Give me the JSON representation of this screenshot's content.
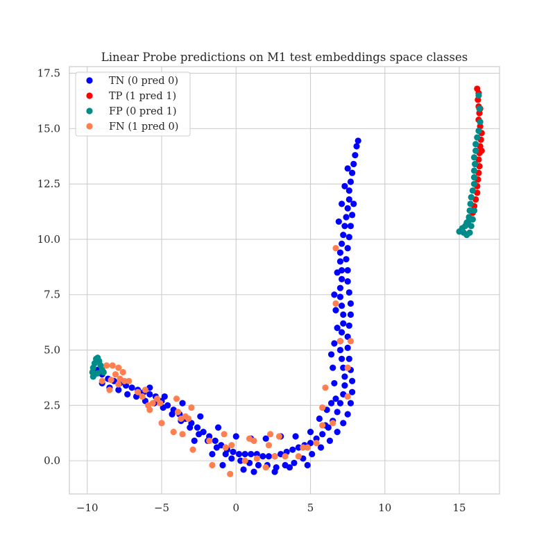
{
  "chart_data": {
    "type": "scatter",
    "title": "Linear Probe predictions on M1 test embeddings space classes",
    "xlabel": "",
    "ylabel": "",
    "xlim": [
      -11.2,
      17.7
    ],
    "ylim": [
      -1.5,
      17.8
    ],
    "xticks": [
      -10,
      -5,
      0,
      5,
      10,
      15
    ],
    "xtick_labels": [
      "−10",
      "−5",
      "0",
      "5",
      "10",
      "15"
    ],
    "yticks": [
      0.0,
      2.5,
      5.0,
      7.5,
      10.0,
      12.5,
      15.0,
      17.5
    ],
    "ytick_labels": [
      "0.0",
      "2.5",
      "5.0",
      "7.5",
      "10.0",
      "12.5",
      "15.0",
      "17.5"
    ],
    "grid": true,
    "legend_position": "upper-left",
    "series": [
      {
        "name": "TN (0 pred 0)",
        "color": "#0000ff",
        "points": [
          [
            -9.3,
            4.1
          ],
          [
            -9.0,
            3.9
          ],
          [
            -8.6,
            3.7
          ],
          [
            -8.2,
            3.6
          ],
          [
            -7.8,
            3.5
          ],
          [
            -7.4,
            3.4
          ],
          [
            -7.0,
            3.3
          ],
          [
            -6.6,
            3.2
          ],
          [
            -6.2,
            3.1
          ],
          [
            -5.8,
            3.0
          ],
          [
            -5.4,
            2.9
          ],
          [
            -5.0,
            2.7
          ],
          [
            -4.6,
            2.5
          ],
          [
            -4.2,
            2.3
          ],
          [
            -3.8,
            2.1
          ],
          [
            -3.4,
            1.9
          ],
          [
            -3.0,
            1.7
          ],
          [
            -2.6,
            1.5
          ],
          [
            -2.2,
            1.3
          ],
          [
            -1.8,
            1.1
          ],
          [
            -1.4,
            0.9
          ],
          [
            -1.0,
            0.7
          ],
          [
            -0.6,
            0.5
          ],
          [
            -0.2,
            0.4
          ],
          [
            0.2,
            0.3
          ],
          [
            0.6,
            0.3
          ],
          [
            1.0,
            0.3
          ],
          [
            1.4,
            0.3
          ],
          [
            1.8,
            0.2
          ],
          [
            2.2,
            0.2
          ],
          [
            2.6,
            0.2
          ],
          [
            3.0,
            0.3
          ],
          [
            3.4,
            0.4
          ],
          [
            3.8,
            0.5
          ],
          [
            4.2,
            0.6
          ],
          [
            4.6,
            0.7
          ],
          [
            5.0,
            0.8
          ],
          [
            5.4,
            1.0
          ],
          [
            5.8,
            1.2
          ],
          [
            6.2,
            1.5
          ],
          [
            6.5,
            1.8
          ],
          [
            6.8,
            2.2
          ],
          [
            7.0,
            2.6
          ],
          [
            7.2,
            3.0
          ],
          [
            7.3,
            3.4
          ],
          [
            7.3,
            3.8
          ],
          [
            7.2,
            4.2
          ],
          [
            7.1,
            4.6
          ],
          [
            7.0,
            5.0
          ],
          [
            7.0,
            5.4
          ],
          [
            7.1,
            5.8
          ],
          [
            7.2,
            6.2
          ],
          [
            7.2,
            6.6
          ],
          [
            7.1,
            7.0
          ],
          [
            7.0,
            7.4
          ],
          [
            7.0,
            7.8
          ],
          [
            7.1,
            8.2
          ],
          [
            7.1,
            8.6
          ],
          [
            7.0,
            9.0
          ],
          [
            7.0,
            9.4
          ],
          [
            7.1,
            9.8
          ],
          [
            7.2,
            10.2
          ],
          [
            7.3,
            10.6
          ],
          [
            7.4,
            11.0
          ],
          [
            7.5,
            11.4
          ],
          [
            7.6,
            11.8
          ],
          [
            7.6,
            12.2
          ],
          [
            7.7,
            12.6
          ],
          [
            7.8,
            13.0
          ],
          [
            7.9,
            13.4
          ],
          [
            8.0,
            13.8
          ],
          [
            8.1,
            14.2
          ],
          [
            8.2,
            14.45
          ],
          [
            -9.0,
            3.5
          ],
          [
            -8.5,
            3.3
          ],
          [
            -7.9,
            3.2
          ],
          [
            -7.3,
            3.0
          ],
          [
            -6.7,
            2.9
          ],
          [
            -6.1,
            2.7
          ],
          [
            -5.5,
            2.6
          ],
          [
            -4.9,
            2.4
          ],
          [
            -4.3,
            2.1
          ],
          [
            -3.7,
            1.8
          ],
          [
            -3.1,
            1.5
          ],
          [
            -2.5,
            1.2
          ],
          [
            -1.9,
            0.9
          ],
          [
            -1.3,
            0.6
          ],
          [
            -0.7,
            0.3
          ],
          [
            -0.3,
            0.1
          ],
          [
            0.3,
            0.0
          ],
          [
            0.9,
            -0.1
          ],
          [
            1.5,
            -0.2
          ],
          [
            2.1,
            -0.2
          ],
          [
            2.7,
            -0.3
          ],
          [
            3.3,
            -0.2
          ],
          [
            3.9,
            -0.1
          ],
          [
            4.5,
            0.1
          ],
          [
            5.1,
            0.3
          ],
          [
            5.7,
            0.6
          ],
          [
            6.3,
            0.9
          ],
          [
            6.8,
            1.3
          ],
          [
            7.2,
            1.7
          ],
          [
            7.5,
            2.1
          ],
          [
            7.7,
            2.6
          ],
          [
            7.8,
            3.1
          ],
          [
            7.8,
            3.6
          ],
          [
            7.7,
            4.1
          ],
          [
            7.6,
            4.6
          ],
          [
            7.5,
            5.1
          ],
          [
            7.5,
            5.6
          ],
          [
            7.6,
            6.1
          ],
          [
            7.7,
            6.6
          ],
          [
            7.7,
            7.1
          ],
          [
            7.6,
            7.6
          ],
          [
            7.5,
            8.1
          ],
          [
            7.5,
            8.6
          ],
          [
            7.4,
            9.1
          ],
          [
            7.5,
            9.6
          ],
          [
            7.6,
            10.1
          ],
          [
            7.7,
            10.6
          ],
          [
            7.8,
            11.1
          ],
          [
            7.9,
            11.6
          ],
          [
            -5.8,
            3.3
          ],
          [
            -4.8,
            2.9
          ],
          [
            -3.6,
            2.6
          ],
          [
            -2.4,
            2.0
          ],
          [
            -1.2,
            1.5
          ],
          [
            0.0,
            1.1
          ],
          [
            1.0,
            1.0
          ],
          [
            2.0,
            1.0
          ],
          [
            3.0,
            1.1
          ],
          [
            4.0,
            1.1
          ],
          [
            5.0,
            1.3
          ],
          [
            6.0,
            1.6
          ],
          [
            6.7,
            2.8
          ],
          [
            6.6,
            3.5
          ],
          [
            6.5,
            4.2
          ],
          [
            6.4,
            4.8
          ],
          [
            6.6,
            5.3
          ],
          [
            6.8,
            6.0
          ],
          [
            6.7,
            6.8
          ],
          [
            6.6,
            7.5
          ],
          [
            6.8,
            8.5
          ],
          [
            6.9,
            10.8
          ],
          [
            7.1,
            11.6
          ],
          [
            7.3,
            12.4
          ],
          [
            7.5,
            13.2
          ],
          [
            -2.8,
            0.9
          ],
          [
            -1.6,
            0.3
          ],
          [
            -0.9,
            -0.2
          ],
          [
            0.5,
            -0.4
          ],
          [
            1.2,
            -0.5
          ],
          [
            2.6,
            -0.5
          ],
          [
            3.6,
            -0.3
          ],
          [
            4.8,
            -0.2
          ],
          [
            5.6,
            1.9
          ],
          [
            6.1,
            2.3
          ],
          [
            6.4,
            2.6
          ]
        ]
      },
      {
        "name": "TP (1 pred 1)",
        "color": "#ff0000",
        "points": [
          [
            16.2,
            16.8
          ],
          [
            16.3,
            16.6
          ],
          [
            16.25,
            16.3
          ],
          [
            16.3,
            16.0
          ],
          [
            16.35,
            15.7
          ],
          [
            16.3,
            15.4
          ],
          [
            16.4,
            15.1
          ],
          [
            16.5,
            14.8
          ],
          [
            16.45,
            14.5
          ],
          [
            16.4,
            14.2
          ],
          [
            16.35,
            13.9
          ],
          [
            16.3,
            13.6
          ],
          [
            16.35,
            13.3
          ],
          [
            16.3,
            13.0
          ],
          [
            16.25,
            12.7
          ],
          [
            16.2,
            12.4
          ],
          [
            16.2,
            12.1
          ],
          [
            16.1,
            11.8
          ],
          [
            16.0,
            11.5
          ],
          [
            15.9,
            11.2
          ],
          [
            16.4,
            15.9
          ],
          [
            16.5,
            14.0
          ]
        ]
      },
      {
        "name": "FP (0 pred 1)",
        "color": "#008b8b",
        "points": [
          [
            16.3,
            16.5
          ],
          [
            16.35,
            15.9
          ],
          [
            16.4,
            15.3
          ],
          [
            16.3,
            14.9
          ],
          [
            16.2,
            14.6
          ],
          [
            16.1,
            14.3
          ],
          [
            16.1,
            14.0
          ],
          [
            16.0,
            13.7
          ],
          [
            16.05,
            13.4
          ],
          [
            16.0,
            13.1
          ],
          [
            16.0,
            12.8
          ],
          [
            16.0,
            12.5
          ],
          [
            15.9,
            12.2
          ],
          [
            15.8,
            11.9
          ],
          [
            15.75,
            11.6
          ],
          [
            15.7,
            11.3
          ],
          [
            15.65,
            11.0
          ],
          [
            15.6,
            10.8
          ],
          [
            15.4,
            10.6
          ],
          [
            15.2,
            10.5
          ],
          [
            15.0,
            10.35
          ],
          [
            15.3,
            10.3
          ],
          [
            15.5,
            10.2
          ],
          [
            15.7,
            10.3
          ],
          [
            15.8,
            10.6
          ],
          [
            15.5,
            10.75
          ],
          [
            15.9,
            10.9
          ],
          [
            16.0,
            11.3
          ],
          [
            -9.6,
            3.8
          ],
          [
            -9.65,
            4.0
          ],
          [
            -9.6,
            4.2
          ],
          [
            -9.5,
            4.4
          ],
          [
            -9.4,
            4.6
          ],
          [
            -9.3,
            4.65
          ],
          [
            -9.2,
            4.5
          ],
          [
            -9.1,
            4.3
          ],
          [
            -9.0,
            4.1
          ],
          [
            -8.9,
            4.0
          ],
          [
            -9.3,
            3.95
          ],
          [
            -9.5,
            3.9
          ]
        ]
      },
      {
        "name": "FN (1 pred 0)",
        "color": "#ff7f50",
        "points": [
          [
            -8.7,
            4.3
          ],
          [
            -8.3,
            4.3
          ],
          [
            -7.9,
            4.2
          ],
          [
            -7.6,
            4.0
          ],
          [
            -8.1,
            3.9
          ],
          [
            -7.8,
            3.7
          ],
          [
            -7.5,
            3.6
          ],
          [
            -8.4,
            3.65
          ],
          [
            -7.9,
            3.45
          ],
          [
            -9.0,
            3.6
          ],
          [
            -8.5,
            3.2
          ],
          [
            -7.2,
            3.6
          ],
          [
            -6.6,
            3.1
          ],
          [
            -6.3,
            2.9
          ],
          [
            -6.1,
            3.2
          ],
          [
            -5.9,
            2.5
          ],
          [
            -5.6,
            2.6
          ],
          [
            -5.8,
            2.3
          ],
          [
            -5.3,
            2.8
          ],
          [
            -5.1,
            2.6
          ],
          [
            -4.0,
            2.8
          ],
          [
            -3.9,
            2.2
          ],
          [
            -3.7,
            1.9
          ],
          [
            -3.4,
            2.0
          ],
          [
            -3.2,
            1.9
          ],
          [
            -3.0,
            2.4
          ],
          [
            -4.2,
            1.3
          ],
          [
            -3.6,
            1.2
          ],
          [
            -5.0,
            1.7
          ],
          [
            -2.9,
            0.5
          ],
          [
            -1.8,
            0.9
          ],
          [
            -1.6,
            -0.2
          ],
          [
            -0.8,
            1.2
          ],
          [
            -0.7,
            0.6
          ],
          [
            -0.3,
            0.7
          ],
          [
            -0.4,
            -0.6
          ],
          [
            0.6,
            0.0
          ],
          [
            0.9,
            1.0
          ],
          [
            1.2,
            0.9
          ],
          [
            1.4,
            0.1
          ],
          [
            2.0,
            -0.3
          ],
          [
            2.3,
            1.2
          ],
          [
            2.2,
            0.7
          ],
          [
            2.6,
            0.2
          ],
          [
            2.9,
            1.1
          ],
          [
            3.3,
            0.2
          ],
          [
            4.2,
            0.2
          ],
          [
            4.5,
            0.6
          ],
          [
            4.8,
            0.6
          ],
          [
            5.4,
            0.8
          ],
          [
            5.8,
            1.6
          ],
          [
            6.5,
            1.7
          ],
          [
            6.0,
            3.3
          ],
          [
            5.8,
            2.4
          ],
          [
            6.7,
            9.6
          ],
          [
            6.7,
            7.1
          ],
          [
            7.0,
            5.4
          ],
          [
            7.7,
            5.4
          ],
          [
            7.5,
            4.2
          ],
          [
            7.5,
            2.9
          ]
        ]
      }
    ]
  }
}
